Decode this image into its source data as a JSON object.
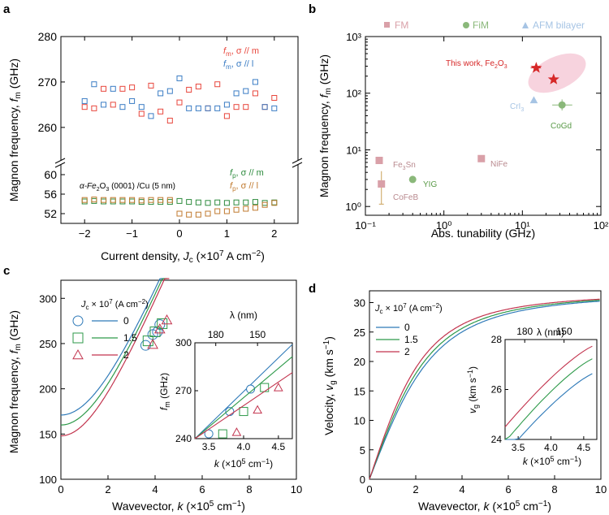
{
  "chart_data": [
    {
      "panel": "a",
      "type": "scatter",
      "xlabel": "Current density, J_c (×10^7 A cm^-2)",
      "ylabel": "Magnon frequency, f_m (GHz)",
      "upper": {
        "ylim": [
          253,
          280
        ],
        "yticks": [
          260,
          270,
          280
        ],
        "series": [
          {
            "name": "f_m, σ // m",
            "color": "#e8473d",
            "x": [
              -2,
              -1.8,
              -1.6,
              -1.4,
              -1.2,
              -1,
              -0.8,
              -0.6,
              -0.4,
              -0.2,
              0,
              0.2,
              0.4,
              0.6,
              0.8,
              1,
              1.2,
              1.4,
              1.6,
              1.8,
              2
            ],
            "y": [
              264.5,
              264.2,
              268.5,
              265,
              268.5,
              268.8,
              263,
              269.2,
              263.5,
              261.5,
              265.5,
              268.3,
              269,
              264.2,
              269.5,
              262.5,
              264.5,
              264.5,
              267.5,
              264.5,
              266.5
            ]
          },
          {
            "name": "f_m, σ // l",
            "color": "#3a7cc4",
            "x": [
              -2,
              -1.8,
              -1.6,
              -1.4,
              -1.2,
              -1,
              -0.8,
              -0.6,
              -0.4,
              -0.2,
              0,
              0.2,
              0.4,
              0.6,
              0.8,
              1,
              1.2,
              1.4,
              1.6,
              1.8,
              2
            ],
            "y": [
              265.8,
              269.5,
              265,
              268.5,
              264.5,
              265.8,
              264.5,
              262.5,
              267.5,
              268,
              270.8,
              264.2,
              264.2,
              264.2,
              264.2,
              265,
              267.5,
              268,
              270,
              264.5,
              264.2
            ]
          }
        ]
      },
      "lower": {
        "ylim": [
          50,
          62
        ],
        "yticks": [
          52,
          56,
          60
        ],
        "series": [
          {
            "name": "f_p, σ // m",
            "color": "#2e8b3e",
            "x": [
              -2,
              -1.8,
              -1.6,
              -1.4,
              -1.2,
              -1,
              -0.8,
              -0.6,
              -0.4,
              -0.2,
              0,
              0.2,
              0.4,
              0.6,
              0.8,
              1,
              1.2,
              1.4,
              1.6,
              1.8,
              2
            ],
            "y": [
              54.5,
              54.6,
              54.5,
              54.5,
              54.5,
              54.5,
              54.4,
              54.4,
              54.4,
              54.4,
              54.6,
              54.4,
              54.3,
              54.2,
              54.3,
              54.2,
              54.3,
              54.3,
              54.4,
              54.2,
              54.3
            ]
          },
          {
            "name": "f_p, σ // l",
            "color": "#c07a2f",
            "x": [
              -2,
              -1.8,
              -1.6,
              -1.4,
              -1.2,
              -1,
              -0.8,
              -0.6,
              -0.4,
              -0.2,
              0,
              0.2,
              0.4,
              0.6,
              0.8,
              1,
              1.2,
              1.4,
              1.6,
              1.8,
              2
            ],
            "y": [
              54.8,
              54.9,
              54.8,
              54.8,
              54.8,
              54.8,
              54.7,
              54.8,
              54.8,
              54.8,
              52,
              51.8,
              51.8,
              52,
              52.5,
              52.5,
              52.8,
              53,
              53.2,
              53.8,
              54.2
            ]
          }
        ]
      },
      "xlim": [
        -2.5,
        2.5
      ],
      "xticks": [
        -2,
        -1,
        0,
        1,
        2
      ],
      "annotation": "α-Fe₂O₃ (0001) /Cu (5 nm)",
      "legend": {
        "fm_m": "f",
        "fm_m_sub": "m",
        "fm_m_rest": ", σ // m",
        "fm_l": "f",
        "fm_l_sub": "m",
        "fm_l_rest": ", σ // l",
        "fp_m": "f",
        "fp_m_sub": "p",
        "fp_m_rest": ", σ // m",
        "fp_l": "f",
        "fp_l_sub": "p",
        "fp_l_rest": ", σ // l"
      }
    },
    {
      "panel": "b",
      "type": "scatter",
      "xscale": "log",
      "yscale": "log",
      "xlim": [
        0.1,
        100
      ],
      "ylim": [
        0.7,
        1000
      ],
      "xlabel": "Abs. tunability (GHz)",
      "ylabel": "Magnon frequency, f_m (GHz)",
      "categories": [
        {
          "name": "FM",
          "color": "#d9a0a8",
          "marker": "square"
        },
        {
          "name": "FiM",
          "color": "#8ab87a",
          "marker": "circle"
        },
        {
          "name": "AFM bilayer",
          "color": "#a6c4e4",
          "marker": "triangle"
        }
      ],
      "points": [
        {
          "label": "This work, Fe₂O₃",
          "x": 15,
          "y": 280,
          "color": "#d62828",
          "marker": "star"
        },
        {
          "label": "",
          "x": 25,
          "y": 175,
          "color": "#d62828",
          "marker": "star"
        },
        {
          "label": "CrI₃",
          "x": 14,
          "y": 75,
          "color": "#a6c4e4",
          "marker": "triangle"
        },
        {
          "label": "CoGd",
          "x": 32,
          "y": 62,
          "color": "#8ab87a",
          "marker": "circle"
        },
        {
          "label": "Fe₃Sn",
          "x": 0.15,
          "y": 6.5,
          "color": "#d9a0a8",
          "marker": "square"
        },
        {
          "label": "NiFe",
          "x": 3,
          "y": 7,
          "color": "#d9a0a8",
          "marker": "square"
        },
        {
          "label": "YIG",
          "x": 0.4,
          "y": 3,
          "color": "#8ab87a",
          "marker": "circle"
        },
        {
          "label": "CoFeB",
          "x": 0.16,
          "y": 2.5,
          "color": "#d9a0a8",
          "marker": "square"
        }
      ],
      "xtick_labels": [
        "10⁻¹",
        "10⁰",
        "10¹",
        "10²"
      ],
      "ytick_labels": [
        "10⁰",
        "10¹",
        "10²",
        "10³"
      ]
    },
    {
      "panel": "c",
      "type": "line",
      "xlabel": "Wavevector, k (×10⁵ cm⁻¹)",
      "ylabel": "Magnon frequency, f_m (GHz)",
      "xlim": [
        0,
        10
      ],
      "ylim": [
        100,
        320
      ],
      "xticks": [
        0,
        2,
        4,
        6,
        8,
        10
      ],
      "yticks": [
        100,
        150,
        200,
        250,
        300
      ],
      "top_axis_label": "λ (nm)",
      "top_ticks": [
        "180",
        "150"
      ],
      "legend_title": "J_c × 10⁷ (A cm⁻²)",
      "series": [
        {
          "name": "0",
          "color": "#2f7ab8",
          "f0": 171,
          "marker": "circle",
          "points_k": [
            3.6,
            3.9,
            4.1,
            4.2
          ],
          "points_f": [
            248,
            260,
            263,
            271
          ]
        },
        {
          "name": "1.5",
          "color": "#2e9a4a",
          "f0": 160,
          "marker": "square",
          "points_k": [
            3.7,
            4.0,
            4.3
          ],
          "points_f": [
            253,
            263,
            272
          ]
        },
        {
          "name": "2",
          "color": "#c2334d",
          "f0": 148,
          "marker": "triangle",
          "points_k": [
            3.9,
            4.2,
            4.5
          ],
          "points_f": [
            249,
            266,
            276
          ]
        }
      ],
      "inset": {
        "xlim": [
          3.3,
          4.7
        ],
        "ylim": [
          240,
          300
        ],
        "xticks": [
          3.5,
          4.0,
          4.5
        ],
        "yticks": [
          240,
          270,
          300
        ],
        "xlabel": "k (×10⁵ cm⁻¹)",
        "ylabel": "f_m (GHz)",
        "top_label": "λ (nm)",
        "top_ticks": [
          "180",
          "150"
        ],
        "points": [
          {
            "series": "0",
            "k": [
              3.5,
              3.8,
              4.1
            ],
            "f": [
              243,
              257,
              271
            ]
          },
          {
            "series": "1.5",
            "k": [
              3.7,
              4.0,
              4.3
            ],
            "f": [
              243,
              257,
              272
            ]
          },
          {
            "series": "2",
            "k": [
              3.9,
              4.2,
              4.5
            ],
            "f": [
              244,
              258,
              272
            ]
          }
        ]
      }
    },
    {
      "panel": "d",
      "type": "line",
      "xlabel": "Wavevector, k (×10⁵ cm⁻¹)",
      "ylabel": "Velocity, v_g (km s⁻¹)",
      "xlim": [
        0,
        10
      ],
      "ylim": [
        0,
        32
      ],
      "xticks": [
        0,
        2,
        4,
        6,
        8,
        10
      ],
      "yticks": [
        0,
        5,
        10,
        15,
        20,
        25,
        30
      ],
      "legend_title": "J_c × 10⁷ (A cm⁻²)",
      "series": [
        {
          "name": "0",
          "color": "#2f7ab8"
        },
        {
          "name": "1.5",
          "color": "#2e9a4a"
        },
        {
          "name": "2",
          "color": "#c2334d"
        }
      ],
      "inset": {
        "xlim": [
          3.3,
          4.7
        ],
        "ylim": [
          24,
          28
        ],
        "xticks": [
          3.5,
          4.0,
          4.5
        ],
        "yticks": [
          24,
          26,
          28
        ],
        "xlabel": "k (×10⁵ cm⁻¹)",
        "ylabel": "v_g (km s⁻¹)",
        "top_label": "λ (nm)",
        "top_ticks": [
          "180",
          "150"
        ]
      }
    }
  ],
  "labels": {
    "panel_a": "a",
    "panel_b": "b",
    "panel_c": "c",
    "panel_d": "d",
    "a_ylabel_main": "Magnon frequency, ",
    "a_ylabel_f": "f",
    "a_ylabel_sub": "m",
    "a_ylabel_unit": " (GHz)",
    "a_xlabel_main": "Current density, ",
    "a_xlabel_j": "J",
    "a_xlabel_sub": "c",
    "a_xlabel_unit": " (×10",
    "a_xlabel_sup": "7",
    "a_xlabel_rest": " A cm",
    "a_xlabel_sup2": "−2",
    "a_xlabel_close": ")",
    "b_xlabel": "Abs. tunability (GHz)",
    "b_ylabel_main": "Magnon frequency, ",
    "b_ylabel_f": "f",
    "b_ylabel_sub": "m",
    "b_ylabel_unit": " (GHz)",
    "this_work": "This work, Fe",
    "this_work_sub": "2",
    "this_work_o": "O",
    "this_work_sub2": "3",
    "cri3": "CrI",
    "cri3_sub": "3",
    "cogd": "CoGd",
    "fe3sn": "Fe",
    "fe3sn_sub": "3",
    "fe3sn_rest": "Sn",
    "nife": "NiFe",
    "yig": "YIG",
    "cofeb": "CoFeB",
    "c_ylabel_main": "Magnon frequency, ",
    "c_ylabel_f": "f",
    "c_ylabel_sub": "m",
    "c_ylabel_unit": " (GHz)",
    "c_xlabel_main": "Wavevector, ",
    "c_xlabel_k": "k",
    "c_xlabel_unit": " (×10",
    "c_xlabel_sup": "5",
    "c_xlabel_rest": " cm",
    "c_xlabel_sup2": "−1",
    "c_xlabel_close": ")",
    "d_ylabel_main": "Velocity, ",
    "d_ylabel_v": "v",
    "d_ylabel_sub": "g",
    "d_ylabel_unit": " (km s",
    "d_ylabel_sup": "−1",
    "d_ylabel_close": ")",
    "legend_title_j": "J",
    "legend_title_sub": "c",
    "legend_title_times": " × 10",
    "legend_title_sup": "7",
    "legend_title_unit": " (A cm",
    "legend_title_sup2": "−2",
    "legend_title_close": ")",
    "lambda": "λ (nm)",
    "inset_k": "k",
    "inset_k_unit": " (×10",
    "inset_k_sup": "5",
    "inset_k_rest": " cm",
    "inset_k_sup2": "−1",
    "inset_k_close": ")",
    "inset_f": "f",
    "inset_f_sub": "m",
    "inset_f_unit": " (GHz)",
    "inset_v": "v",
    "inset_v_sub": "g",
    "inset_v_unit": " (km s",
    "inset_v_sup": "−1",
    "inset_v_close": ")",
    "annotation_a_alpha": "α-Fe",
    "annotation_a_sub": "2",
    "annotation_a_o": "O",
    "annotation_a_sub2": "3",
    "annotation_a_rest": " (0001) /Cu (5 nm)"
  }
}
